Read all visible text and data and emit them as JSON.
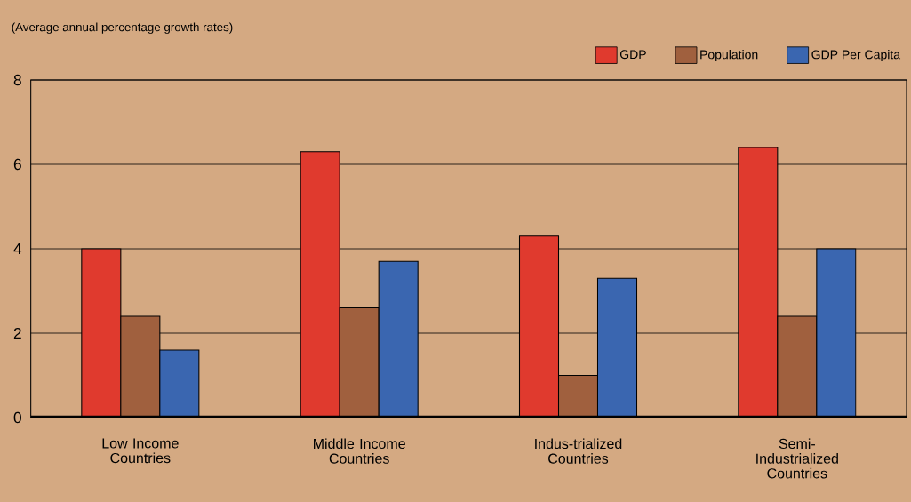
{
  "chart_data": {
    "type": "bar",
    "title": "(Average annual percentage growth rates)",
    "categories": [
      "Low Income Countries",
      "Middle Income Countries",
      "Indus-trialized Countries",
      "Semi-Industrialized Countries"
    ],
    "series": [
      {
        "name": "GDP",
        "color": "#e03a2e",
        "values": [
          4.0,
          6.3,
          4.3,
          6.4
        ]
      },
      {
        "name": "Population",
        "color": "#a0603e",
        "values": [
          2.4,
          2.6,
          1.0,
          2.4
        ]
      },
      {
        "name": "GDP Per Capita",
        "color": "#3a66b0",
        "values": [
          1.6,
          3.7,
          3.3,
          4.0
        ]
      }
    ],
    "ylim": [
      0,
      8
    ],
    "yticks": [
      0,
      2,
      4,
      6,
      8
    ],
    "grid": "y",
    "legend": "top right"
  }
}
